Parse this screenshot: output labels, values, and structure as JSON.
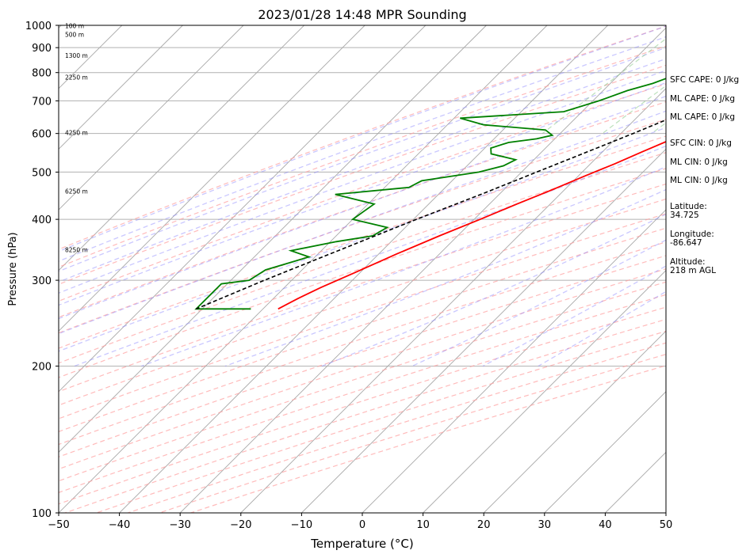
{
  "chart_data": {
    "type": "line",
    "title": "2023/01/28 14:48 MPR Sounding",
    "xlabel": "Temperature (°C)",
    "ylabel": "Pressure (hPa)",
    "xlim": [
      -50,
      50
    ],
    "ylim": [
      1000,
      100
    ],
    "y_scale": "log",
    "x_ticks": [
      -50,
      -40,
      -30,
      -20,
      -10,
      0,
      10,
      20,
      30,
      40,
      50
    ],
    "x_tick_labels": [
      "−50",
      "−40",
      "−30",
      "−20",
      "−10",
      "0",
      "10",
      "20",
      "30",
      "40",
      "50"
    ],
    "y_ticks": [
      100,
      200,
      300,
      400,
      500,
      600,
      700,
      800,
      900,
      1000
    ],
    "y_tick_labels": [
      "100",
      "200",
      "300",
      "400",
      "500",
      "600",
      "700",
      "800",
      "900",
      "1000"
    ],
    "grid": true,
    "skew": true,
    "height_labels": [
      {
        "p": 995,
        "text": "100 m"
      },
      {
        "p": 955,
        "text": "500 m"
      },
      {
        "p": 865,
        "text": "1300 m"
      },
      {
        "p": 780,
        "text": "2250 m"
      },
      {
        "p": 600,
        "text": "4250 m"
      },
      {
        "p": 455,
        "text": "6250 m"
      },
      {
        "p": 345,
        "text": "8250 m"
      }
    ],
    "series": [
      {
        "color": "#ff0000",
        "points": [
          [
            1000,
            9.0
          ],
          [
            985,
            10.5
          ],
          [
            960,
            9.5
          ],
          [
            930,
            7.0
          ],
          [
            900,
            4.5
          ],
          [
            870,
            2.5
          ],
          [
            840,
            1.5
          ],
          [
            820,
            1.0
          ],
          [
            800,
            0.5
          ],
          [
            760,
            -1.0
          ],
          [
            720,
            -2.5
          ],
          [
            680,
            -4.0
          ],
          [
            640,
            -6.5
          ],
          [
            610,
            -8.5
          ],
          [
            580,
            -11.0
          ],
          [
            550,
            -13.5
          ],
          [
            520,
            -16.0
          ],
          [
            490,
            -19.0
          ],
          [
            460,
            -22.0
          ],
          [
            430,
            -25.5
          ],
          [
            400,
            -29.0
          ],
          [
            370,
            -33.0
          ],
          [
            340,
            -37.0
          ],
          [
            310,
            -41.0
          ],
          [
            290,
            -44.0
          ],
          [
            275,
            -46.0
          ],
          [
            262,
            -47.5
          ]
        ]
      },
      {
        "color": "#008000",
        "points": [
          [
            1000,
            -2.5
          ],
          [
            990,
            -3.0
          ],
          [
            970,
            -3.5
          ],
          [
            950,
            -4.5
          ],
          [
            935,
            -6.5
          ],
          [
            920,
            -8.5
          ],
          [
            900,
            -11.5
          ],
          [
            880,
            -15.0
          ],
          [
            860,
            -18.0
          ],
          [
            840,
            -18.5
          ],
          [
            820,
            -19.5
          ],
          [
            800,
            -20.0
          ],
          [
            780,
            -21.5
          ],
          [
            760,
            -23.0
          ],
          [
            735,
            -26.0
          ],
          [
            700,
            -29.0
          ],
          [
            665,
            -33.0
          ],
          [
            645,
            -49.0
          ],
          [
            625,
            -44.0
          ],
          [
            610,
            -33.0
          ],
          [
            595,
            -31.0
          ],
          [
            585,
            -33.0
          ],
          [
            575,
            -37.0
          ],
          [
            560,
            -39.0
          ],
          [
            545,
            -38.0
          ],
          [
            530,
            -33.0
          ],
          [
            515,
            -34.0
          ],
          [
            500,
            -37.0
          ],
          [
            480,
            -45.0
          ],
          [
            465,
            -46.0
          ],
          [
            450,
            -57.0
          ],
          [
            430,
            -49.0
          ],
          [
            415,
            -49.5
          ],
          [
            400,
            -50.0
          ],
          [
            385,
            -43.0
          ],
          [
            370,
            -44.0
          ],
          [
            360,
            -49.0
          ],
          [
            345,
            -55.0
          ],
          [
            335,
            -51.0
          ],
          [
            315,
            -56.0
          ],
          [
            300,
            -57.0
          ],
          [
            295,
            -61.0
          ],
          [
            262,
            -61.0
          ],
          [
            262,
            -52.0
          ]
        ]
      },
      {
        "color": "#000000",
        "dashed": true,
        "points": [
          [
            1000,
            6.8
          ],
          [
            970,
            5.2
          ],
          [
            940,
            3.3
          ],
          [
            910,
            0.9
          ],
          [
            880,
            -1.0
          ],
          [
            850,
            -2.0
          ],
          [
            800,
            -4.5
          ],
          [
            750,
            -7.2
          ],
          [
            700,
            -10.5
          ],
          [
            650,
            -14.0
          ],
          [
            600,
            -18.0
          ],
          [
            550,
            -22.5
          ],
          [
            500,
            -27.5
          ],
          [
            450,
            -33.0
          ],
          [
            400,
            -39.5
          ],
          [
            350,
            -46.5
          ],
          [
            300,
            -54.5
          ],
          [
            262,
            -61.0
          ]
        ]
      }
    ]
  },
  "annotations": [
    "SFC CAPE: 0 J/kg",
    "ML CAPE: 0 J/kg",
    "ML CAPE: 0 J/kg",
    "SFC CIN: 0 J/kg",
    "ML CIN: 0 J/kg",
    "ML CIN: 0 J/kg",
    "Latitude:",
    "34.725",
    "Longitude:",
    "-86.647",
    "Altitude:",
    "218 m AGL"
  ]
}
